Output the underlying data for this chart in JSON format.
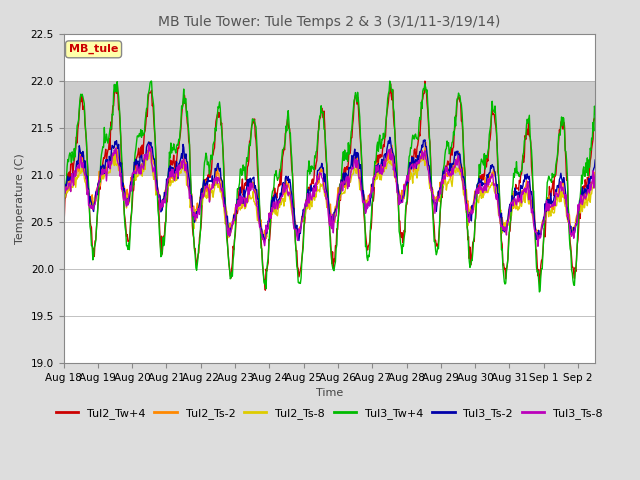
{
  "title": "MB Tule Tower: Tule Temps 2 & 3 (3/1/11-3/19/14)",
  "xlabel": "Time",
  "ylabel": "Temperature (C)",
  "ylim": [
    19.0,
    22.5
  ],
  "yticks": [
    19.0,
    19.5,
    20.0,
    20.5,
    21.0,
    21.5,
    22.0,
    22.5
  ],
  "xlim_start": 0,
  "xlim_end": 15.5,
  "xtick_labels": [
    "Aug 18",
    "Aug 19",
    "Aug 20",
    "Aug 21",
    "Aug 22",
    "Aug 23",
    "Aug 24",
    "Aug 25",
    "Aug 26",
    "Aug 27",
    "Aug 28",
    "Aug 29",
    "Aug 30",
    "Aug 31",
    "Sep 1",
    "Sep 2"
  ],
  "legend_label": "MB_tule",
  "series_labels": [
    "Tul2_Tw+4",
    "Tul2_Ts-2",
    "Tul2_Ts-8",
    "Tul3_Tw+4",
    "Tul3_Ts-2",
    "Tul3_Ts-8"
  ],
  "series_colors": [
    "#cc0000",
    "#ff8800",
    "#ddcc00",
    "#00bb00",
    "#0000aa",
    "#bb00bb"
  ],
  "background_color": "#dddddd",
  "plot_bg_color": "#ffffff",
  "shaded_band_lo": 21.0,
  "shaded_band_hi": 22.0,
  "shaded_band_color": "#cccccc",
  "title_fontsize": 10,
  "axis_fontsize": 8,
  "tick_fontsize": 7.5,
  "legend_fontsize": 8,
  "linewidth": 1.0
}
